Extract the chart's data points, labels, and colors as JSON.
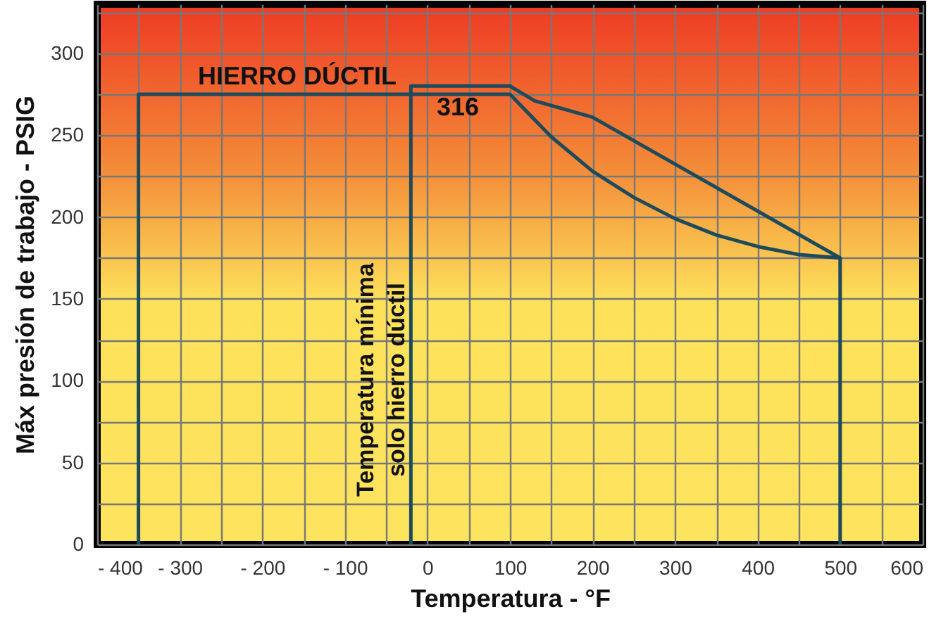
{
  "chart_data": {
    "type": "line",
    "xlabel": "Temperatura - °F",
    "ylabel": "Máx presión de trabajo - PSIG",
    "series": [
      {
        "color": "#1d4a5c",
        "x": [
          -20,
          -20,
          100,
          130,
          200,
          500,
          500
        ],
        "values": [
          0,
          280,
          280,
          271,
          261,
          175,
          0
        ]
      },
      {
        "color": "#1d4a5c",
        "x": [
          -350,
          -350,
          100,
          150,
          200,
          250,
          300,
          350,
          400,
          450,
          500
        ],
        "values": [
          0,
          275,
          275,
          249,
          228,
          212,
          199,
          189,
          182,
          177,
          175
        ]
      }
    ],
    "annotations": [
      "HIERRO DÚCTIL",
      "316",
      "Temperatura mínima\nsolo hierro dúctil"
    ],
    "xlim": [
      -400,
      600
    ],
    "ylim": [
      0,
      330
    ],
    "xticks": [
      {
        "value": -400,
        "label": "- 400"
      },
      {
        "value": -350,
        "label": null
      },
      {
        "value": -300,
        "label": "- 300"
      },
      {
        "value": -250,
        "label": null
      },
      {
        "value": -200,
        "label": "- 200"
      },
      {
        "value": -150,
        "label": null
      },
      {
        "value": -100,
        "label": "- 100"
      },
      {
        "value": -50,
        "label": null
      },
      0,
      {
        "value": 50,
        "label": null
      },
      100,
      {
        "value": 150,
        "label": null
      },
      200,
      {
        "value": 250,
        "label": null
      },
      300,
      {
        "value": 350,
        "label": null
      },
      400,
      {
        "value": 450,
        "label": null
      },
      500,
      {
        "value": 550,
        "label": null
      },
      600
    ],
    "yticks": [
      0,
      {
        "value": 25,
        "label": null
      },
      50,
      {
        "value": 75,
        "label": null
      },
      100,
      {
        "value": 125,
        "label": null
      },
      150,
      {
        "value": 175,
        "label": null
      },
      200,
      {
        "value": 225,
        "label": null
      },
      250,
      {
        "value": 275,
        "label": null
      },
      300,
      {
        "value": 325,
        "label": null
      }
    ],
    "grid": true,
    "marker": "none",
    "line_style": "solid"
  }
}
